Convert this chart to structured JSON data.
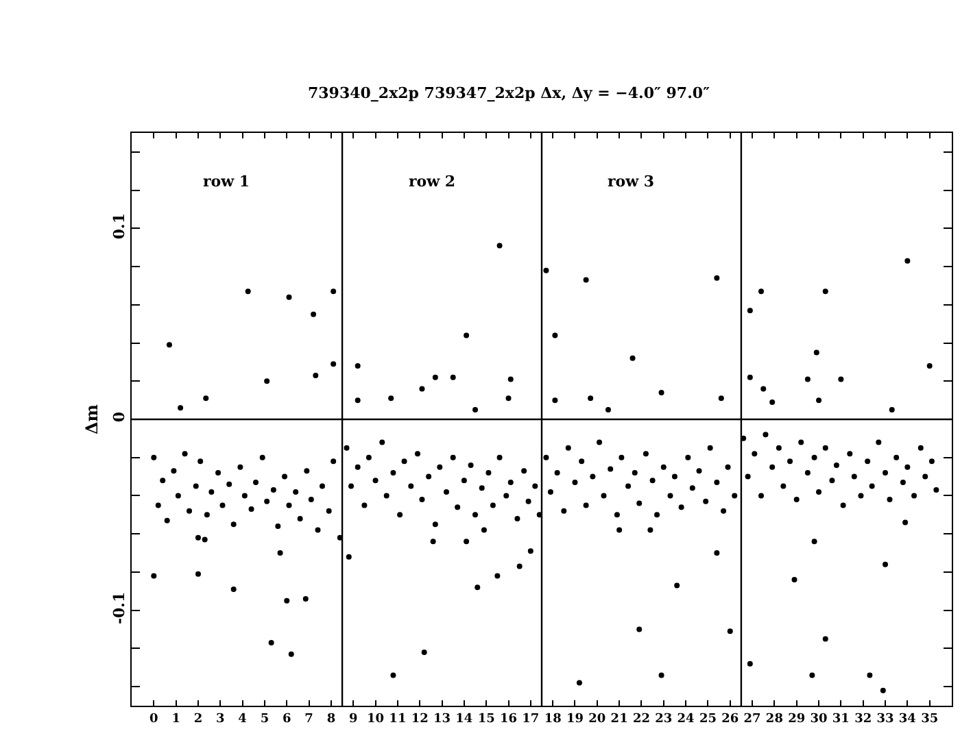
{
  "chart_data": {
    "type": "scatter",
    "title": "739340_2x2p 739347_2x2p Δx, Δy = −4.0″ 97.0″",
    "ylabel": "Δm",
    "annotations": [
      "row 1",
      "row 2",
      "row 3"
    ],
    "xlim": [
      -1,
      36
    ],
    "ylim": [
      -0.15,
      0.15
    ],
    "xticks": [
      0,
      1,
      2,
      3,
      4,
      5,
      6,
      7,
      8,
      9,
      10,
      11,
      12,
      13,
      14,
      15,
      16,
      17,
      18,
      19,
      20,
      21,
      22,
      23,
      24,
      25,
      26,
      27,
      28,
      29,
      30,
      31,
      32,
      33,
      34,
      35
    ],
    "yticks": [
      {
        "value": -0.14,
        "label": null
      },
      {
        "value": -0.12,
        "label": null
      },
      -0.1,
      {
        "value": -0.08,
        "label": null
      },
      {
        "value": -0.06,
        "label": null
      },
      {
        "value": -0.04,
        "label": null
      },
      {
        "value": -0.02,
        "label": null
      },
      0,
      {
        "value": 0.02,
        "label": null
      },
      {
        "value": 0.04,
        "label": null
      },
      {
        "value": 0.06,
        "label": null
      },
      {
        "value": 0.08,
        "label": null
      },
      0.1,
      {
        "value": 0.12,
        "label": null
      },
      {
        "value": 0.14,
        "label": null
      }
    ],
    "ref_lines": [
      {
        "axis": "y",
        "value": 0,
        "label": null,
        "color": "#000000"
      },
      {
        "axis": "x",
        "value": 8.5,
        "label": null,
        "color": "#000000"
      },
      {
        "axis": "x",
        "value": 17.5,
        "label": null,
        "color": "#000000"
      },
      {
        "axis": "x",
        "value": 26.5,
        "label": null,
        "color": "#000000"
      }
    ],
    "marker": "circle",
    "series": [
      {
        "color": "#000000",
        "x": [
          0.0,
          0.2,
          0.4,
          0.6,
          0.9,
          1.1,
          1.4,
          1.6,
          1.9,
          2.1,
          2.4,
          2.6,
          2.9,
          3.1,
          3.4,
          3.6,
          3.9,
          4.1,
          4.4,
          4.6,
          4.9,
          5.1,
          5.4,
          5.6,
          5.9,
          6.1,
          6.4,
          6.6,
          6.9,
          7.1,
          7.4,
          7.6,
          7.9,
          8.1,
          8.4,
          8.7,
          8.9,
          9.2,
          9.5,
          9.7,
          10.0,
          10.3,
          10.5,
          10.8,
          11.1,
          11.3,
          11.6,
          11.9,
          12.1,
          12.4,
          12.7,
          12.9,
          13.2,
          13.5,
          13.7,
          14.0,
          14.3,
          14.5,
          14.8,
          15.1,
          15.3,
          15.6,
          15.9,
          16.1,
          16.4,
          16.7,
          16.9,
          17.2,
          17.4,
          17.7,
          17.9,
          18.2,
          18.5,
          18.7,
          19.0,
          19.3,
          19.5,
          19.8,
          20.1,
          20.3,
          20.6,
          20.9,
          21.1,
          21.4,
          21.7,
          21.9,
          22.2,
          22.5,
          22.7,
          23.0,
          23.3,
          23.5,
          23.8,
          24.1,
          24.3,
          24.6,
          24.9,
          25.1,
          25.4,
          25.7,
          25.9,
          26.2,
          26.6,
          26.8,
          27.1,
          27.4,
          27.6,
          27.9,
          28.2,
          28.4,
          28.7,
          29.0,
          29.2,
          29.5,
          29.8,
          30.0,
          30.3,
          30.6,
          30.8,
          31.1,
          31.4,
          31.6,
          31.9,
          32.2,
          32.4,
          32.7,
          33.0,
          33.2,
          33.5,
          33.8,
          34.0,
          34.3,
          34.6,
          34.8,
          35.1,
          35.3,
          0.7,
          4.25,
          6.1,
          7.2,
          7.3,
          5.1,
          2.35,
          1.2,
          0.0,
          2.0,
          3.6,
          6.0,
          6.85,
          5.3,
          6.2,
          5.7,
          2.0,
          2.3,
          8.1,
          8.1,
          15.6,
          14.1,
          9.2,
          12.7,
          13.5,
          12.1,
          16.1,
          16.0,
          10.7,
          14.5,
          9.2,
          8.8,
          12.6,
          14.1,
          17.0,
          16.5,
          15.5,
          14.6,
          14.9,
          12.2,
          10.8,
          17.7,
          19.5,
          25.4,
          18.1,
          21.6,
          18.1,
          19.7,
          22.9,
          25.6,
          20.5,
          21.0,
          22.4,
          25.4,
          23.6,
          21.9,
          26.0,
          22.9,
          19.2,
          34.0,
          27.4,
          30.3,
          26.9,
          29.9,
          35.0,
          26.9,
          29.5,
          31.0,
          27.5,
          27.9,
          30.0,
          33.3,
          29.8,
          33.0,
          28.9,
          30.3,
          26.9,
          29.7,
          32.3,
          32.9,
          33.9
        ],
        "values": [
          -0.02,
          -0.045,
          -0.032,
          -0.053,
          -0.027,
          -0.04,
          -0.018,
          -0.048,
          -0.035,
          -0.022,
          -0.05,
          -0.038,
          -0.028,
          -0.045,
          -0.034,
          -0.055,
          -0.025,
          -0.04,
          -0.047,
          -0.033,
          -0.02,
          -0.043,
          -0.037,
          -0.056,
          -0.03,
          -0.045,
          -0.038,
          -0.052,
          -0.027,
          -0.042,
          -0.058,
          -0.035,
          -0.048,
          -0.022,
          -0.062,
          -0.015,
          -0.035,
          -0.025,
          -0.045,
          -0.02,
          -0.032,
          -0.012,
          -0.04,
          -0.028,
          -0.05,
          -0.022,
          -0.035,
          -0.018,
          -0.042,
          -0.03,
          -0.055,
          -0.025,
          -0.038,
          -0.02,
          -0.046,
          -0.032,
          -0.024,
          -0.05,
          -0.036,
          -0.028,
          -0.045,
          -0.02,
          -0.04,
          -0.033,
          -0.052,
          -0.027,
          -0.043,
          -0.035,
          -0.05,
          -0.02,
          -0.038,
          -0.028,
          -0.048,
          -0.015,
          -0.033,
          -0.022,
          -0.045,
          -0.03,
          -0.012,
          -0.04,
          -0.026,
          -0.05,
          -0.02,
          -0.035,
          -0.028,
          -0.044,
          -0.018,
          -0.032,
          -0.05,
          -0.025,
          -0.04,
          -0.03,
          -0.046,
          -0.02,
          -0.036,
          -0.027,
          -0.043,
          -0.015,
          -0.033,
          -0.048,
          -0.025,
          -0.04,
          -0.01,
          -0.03,
          -0.018,
          -0.04,
          -0.008,
          -0.025,
          -0.015,
          -0.035,
          -0.022,
          -0.042,
          -0.012,
          -0.028,
          -0.02,
          -0.038,
          -0.015,
          -0.032,
          -0.024,
          -0.045,
          -0.018,
          -0.03,
          -0.04,
          -0.022,
          -0.035,
          -0.012,
          -0.028,
          -0.042,
          -0.02,
          -0.033,
          -0.025,
          -0.04,
          -0.015,
          -0.03,
          -0.022,
          -0.037,
          0.039,
          0.067,
          0.064,
          0.055,
          0.023,
          0.02,
          0.011,
          0.006,
          -0.082,
          -0.081,
          -0.089,
          -0.095,
          -0.094,
          -0.117,
          -0.123,
          -0.07,
          -0.062,
          -0.063,
          0.067,
          0.029,
          0.091,
          0.044,
          0.028,
          0.022,
          0.022,
          0.016,
          0.021,
          0.011,
          0.011,
          0.005,
          0.01,
          -0.072,
          -0.064,
          -0.064,
          -0.069,
          -0.077,
          -0.082,
          -0.088,
          -0.058,
          -0.122,
          -0.134,
          0.078,
          0.073,
          0.074,
          0.044,
          0.032,
          0.01,
          0.011,
          0.014,
          0.011,
          0.005,
          -0.058,
          -0.058,
          -0.07,
          -0.087,
          -0.11,
          -0.111,
          -0.134,
          -0.138,
          0.083,
          0.067,
          0.067,
          0.057,
          0.035,
          0.028,
          0.022,
          0.021,
          0.021,
          0.016,
          0.009,
          0.01,
          0.005,
          -0.064,
          -0.076,
          -0.084,
          -0.115,
          -0.128,
          -0.134,
          -0.134,
          -0.142,
          -0.054
        ]
      }
    ]
  }
}
